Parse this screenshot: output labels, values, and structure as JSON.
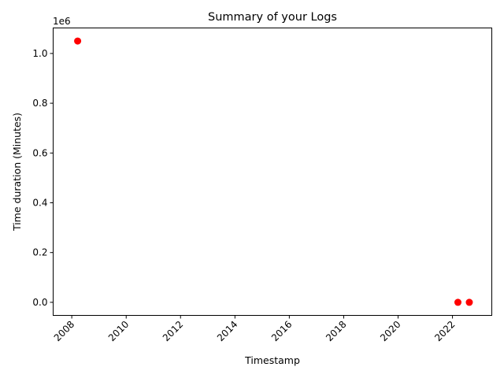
{
  "chart_data": {
    "type": "scatter",
    "title": "Summary of your Logs",
    "xlabel": "Timestamp",
    "ylabel": "Time duration (Minutes)",
    "y_offset_label": "1e6",
    "x_ticks": [
      "2008",
      "2010",
      "2012",
      "2014",
      "2016",
      "2018",
      "2020",
      "2022"
    ],
    "y_ticks": [
      "0.0",
      "0.2",
      "0.4",
      "0.6",
      "0.8",
      "1.0"
    ],
    "xlim": [
      "2007-04-26",
      "2023-06-13"
    ],
    "ylim": [
      -52500,
      1102500
    ],
    "point_color": "#ff0000",
    "series": [
      {
        "points": [
          {
            "x": "2008-03-20",
            "y": 1050000
          },
          {
            "x": "2022-03-15",
            "y": 0
          },
          {
            "x": "2022-08-15",
            "y": 0
          }
        ]
      }
    ],
    "grid": false,
    "legend": "none"
  }
}
